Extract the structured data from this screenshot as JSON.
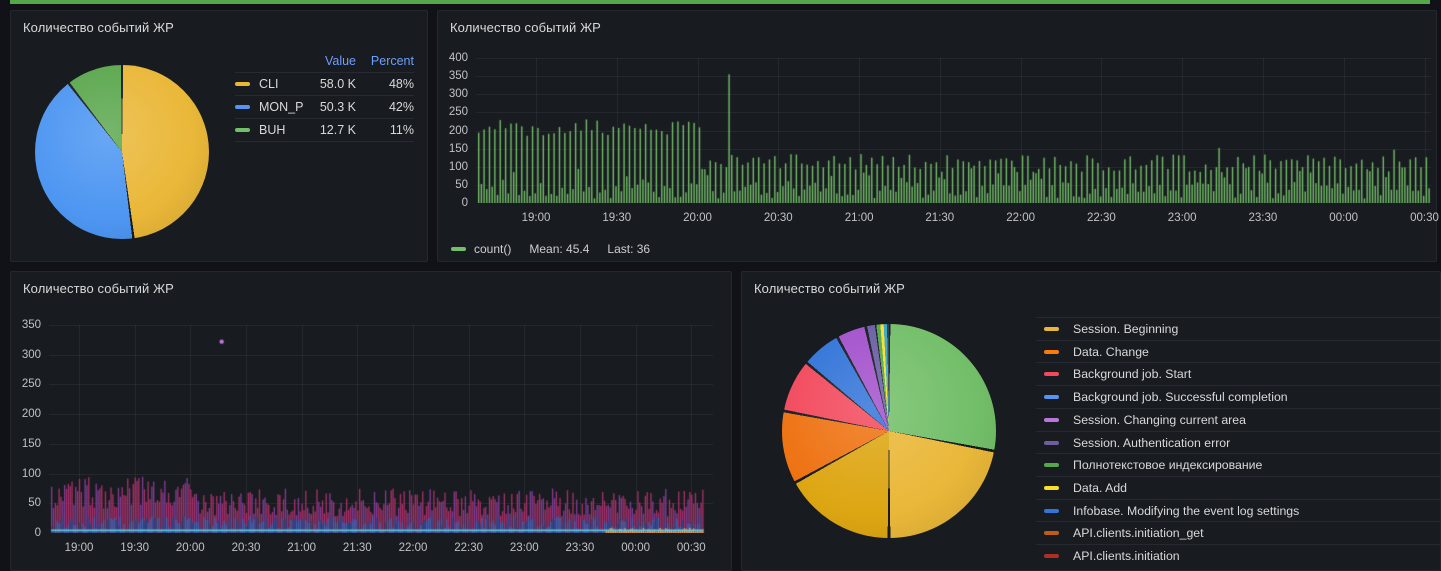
{
  "page": {
    "background": "#111217",
    "panel_background": "#181B1F",
    "top_bar_color": "#56A64B"
  },
  "panels": {
    "pie_top_left": {
      "title": "Количество событий ЖР",
      "table": {
        "headers": {
          "value": "Value",
          "percent": "Percent"
        },
        "rows": [
          {
            "label": "CLI",
            "color": "#EAB839",
            "value": "58.0 K",
            "percent": "48%"
          },
          {
            "label": "MON_P",
            "color": "#5794F2",
            "value": "50.3 K",
            "percent": "42%"
          },
          {
            "label": "BUH",
            "color": "#73BF69",
            "value": "12.7 K",
            "percent": "11%"
          }
        ]
      },
      "chart_data": {
        "type": "pie",
        "start_angle": "top",
        "direction": "clockwise",
        "slices": [
          {
            "label": "CLI",
            "value": 58000,
            "value_display": "58.0 K",
            "percent": 47.9,
            "color": "#EAB839"
          },
          {
            "label": "MON_P",
            "value": 50300,
            "value_display": "50.3 K",
            "percent": 41.6,
            "color": "#4D96F2"
          },
          {
            "label": "BUH",
            "value": 12700,
            "value_display": "12.7 K",
            "percent": 10.5,
            "color": "#5CA84F"
          }
        ]
      }
    },
    "timeseries_top_right": {
      "title": "Количество событий ЖР",
      "legend": {
        "series_label": "count()",
        "mean": "Mean: 45.4",
        "last": "Last: 36"
      },
      "chart_data": {
        "type": "line",
        "ylim": [
          0,
          400
        ],
        "yticks": [
          0,
          50,
          100,
          150,
          200,
          250,
          300,
          350,
          400
        ],
        "xticks": [
          "19:00",
          "19:30",
          "20:00",
          "20:30",
          "21:00",
          "21:30",
          "22:00",
          "22:30",
          "23:00",
          "23:30",
          "00:00",
          "00:30"
        ],
        "series": [
          {
            "name": "count()",
            "color": "#73BF69",
            "mean": 45.4,
            "last": 36
          }
        ],
        "pattern": {
          "x_start": "18:37",
          "x_end": "00:32",
          "segments": [
            {
              "to": "20:00",
              "spikes": [
                185,
                232
              ],
              "noise": [
                12,
                62
              ]
            },
            {
              "spikes": [
                85,
                135
              ],
              "noise": [
                12,
                58
              ]
            }
          ],
          "outliers": [
            {
              "time": "20:10",
              "value": 355
            },
            {
              "time": "23:12",
              "value": 152
            },
            {
              "time": "00:17",
              "value": 147
            }
          ]
        }
      }
    },
    "timeseries_bottom_left": {
      "title": "Количество событий ЖР",
      "chart_data": {
        "type": "area",
        "ylim": [
          0,
          350
        ],
        "yticks": [
          0,
          50,
          100,
          150,
          200,
          250,
          300,
          350
        ],
        "xticks": [
          "19:00",
          "19:30",
          "20:00",
          "20:30",
          "21:00",
          "21:30",
          "22:00",
          "22:30",
          "23:00",
          "23:30",
          "00:00",
          "00:30"
        ],
        "x_start": "18:44",
        "x_end": "00:35",
        "layers": [
          {
            "role": "magenta-area",
            "color": "#A53169",
            "alt_color": "#7E3E96",
            "segments": [
              {
                "to": "20:00",
                "range": [
                  40,
                  95
                ]
              },
              {
                "range": [
                  28,
                  75
                ]
              }
            ]
          },
          {
            "role": "blue-area",
            "color": "#3F62AE",
            "alt_color": "#2C4A8C",
            "range": [
              4,
              28
            ]
          },
          {
            "role": "cyan-line",
            "color": "#5ED1DB",
            "value": 4.5
          },
          {
            "role": "orange-spikes",
            "color": "#FFA13C",
            "from": "23:43",
            "range": [
              2,
              9
            ]
          },
          {
            "role": "outlier-point",
            "color": "#B877D9",
            "time": "20:16",
            "value": 322
          }
        ]
      }
    },
    "pie_bottom_right": {
      "title": "Количество событий ЖР",
      "legend_items": [
        {
          "label": "Session. Beginning",
          "color": "#EAB839"
        },
        {
          "label": "Data. Change",
          "color": "#FF780A"
        },
        {
          "label": "Background job. Start",
          "color": "#F2495C"
        },
        {
          "label": "Background job. Successful completion",
          "color": "#5794F2"
        },
        {
          "label": "Session. Changing current area",
          "color": "#B877D9"
        },
        {
          "label": "Session. Authentication error",
          "color": "#705DA0"
        },
        {
          "label": "Полнотекстовое индексирование",
          "color": "#56A64B"
        },
        {
          "label": "Data. Add",
          "color": "#FADE2A"
        },
        {
          "label": "Infobase. Modifying the event log settings",
          "color": "#3274D9"
        },
        {
          "label": "API.clients.initiation_get",
          "color": "#C15C17"
        },
        {
          "label": "API.clients.initiation",
          "color": "#AD3024"
        }
      ],
      "chart_data": {
        "type": "pie",
        "start_angle": "top",
        "direction": "clockwise",
        "slices": [
          {
            "label": "Полнотекстовое индексирование",
            "color": "#73BF69",
            "pct": 28.0
          },
          {
            "label": "Session. Beginning",
            "color": "#EAB839",
            "pct": 22.0
          },
          {
            "label": "Data. Add",
            "color": "#DDA613",
            "pct": 17.0
          },
          {
            "label": "Data. Change",
            "color": "#EE7211",
            "pct": 11.0
          },
          {
            "label": "Background job. Start",
            "color": "#F2495C",
            "pct": 8.0
          },
          {
            "label": "Background job. Successful completion",
            "color": "#3274D9",
            "pct": 6.0
          },
          {
            "label": "Session. Changing current area",
            "color": "#A352CC",
            "pct": 4.5
          },
          {
            "label": "Session. Authentication error",
            "color": "#6A5FA5",
            "pct": 1.6
          },
          {
            "label": "",
            "color": "#56A64B",
            "pct": 0.6
          },
          {
            "label": "",
            "color": "#FADE2A",
            "pct": 0.5
          },
          {
            "label": "",
            "color": "#38A8BF",
            "pct": 0.5
          },
          {
            "label": "",
            "color": "#2F3A4E",
            "pct": 0.3
          }
        ]
      }
    }
  }
}
